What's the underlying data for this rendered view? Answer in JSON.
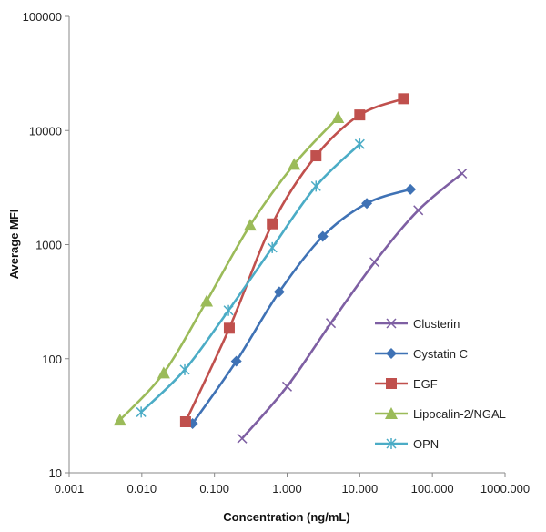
{
  "chart_data": {
    "type": "line",
    "title": "",
    "xlabel": "Concentration (ng/mL)",
    "ylabel": "Average MFI",
    "x_scale": "log",
    "y_scale": "log",
    "xlim": [
      0.001,
      1000
    ],
    "ylim": [
      10,
      100000
    ],
    "x_ticks": [
      0.001,
      0.01,
      0.1,
      1,
      10,
      100,
      1000
    ],
    "x_tick_labels": [
      "0.001",
      "0.010",
      "0.100",
      "1.000",
      "10.000",
      "100.000",
      "1000.000"
    ],
    "y_ticks": [
      10,
      100,
      1000,
      10000,
      100000
    ],
    "y_tick_labels": [
      "10",
      "100",
      "1000",
      "10000",
      "100000"
    ],
    "grid": false,
    "legend_position": "bottom-right",
    "series": [
      {
        "name": "Clusterin",
        "color": "#7e5fa3",
        "marker": "x",
        "points": [
          [
            0.24,
            20
          ],
          [
            1.0,
            57
          ],
          [
            4.0,
            205
          ],
          [
            16.0,
            700
          ],
          [
            64.0,
            2000
          ],
          [
            256.0,
            4200
          ]
        ]
      },
      {
        "name": "Cystatin C",
        "color": "#3f72b5",
        "marker": "diamond",
        "points": [
          [
            0.05,
            27
          ],
          [
            0.2,
            95
          ],
          [
            0.78,
            385
          ],
          [
            3.1,
            1180
          ],
          [
            12.5,
            2300
          ],
          [
            50.0,
            3050
          ]
        ]
      },
      {
        "name": "EGF",
        "color": "#c0504d",
        "marker": "square",
        "points": [
          [
            0.04,
            28
          ],
          [
            0.16,
            185
          ],
          [
            0.625,
            1520
          ],
          [
            2.5,
            6000
          ],
          [
            10.0,
            13700
          ],
          [
            40.0,
            19000
          ]
        ]
      },
      {
        "name": "Lipocalin-2/NGAL",
        "color": "#9bbb59",
        "marker": "triangle",
        "points": [
          [
            0.005,
            29
          ],
          [
            0.02,
            75
          ],
          [
            0.078,
            320
          ],
          [
            0.31,
            1480
          ],
          [
            1.25,
            5050
          ],
          [
            5.0,
            13000
          ]
        ]
      },
      {
        "name": "OPN",
        "color": "#4bacc6",
        "marker": "star",
        "points": [
          [
            0.0098,
            34
          ],
          [
            0.039,
            80
          ],
          [
            0.156,
            265
          ],
          [
            0.625,
            940
          ],
          [
            2.5,
            3250
          ],
          [
            10.0,
            7600
          ]
        ]
      }
    ]
  }
}
